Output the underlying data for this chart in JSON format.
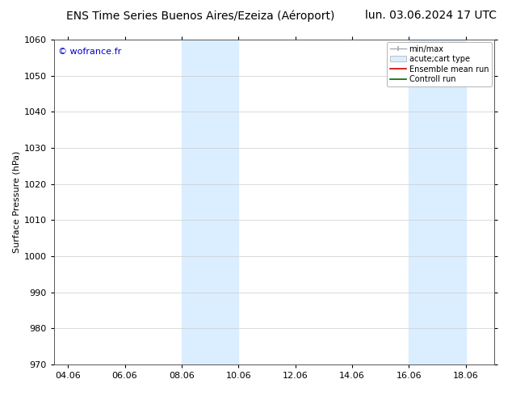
{
  "title_left": "ENS Time Series Buenos Aires/Ezeiza (Aéroport)",
  "title_right": "lun. 03.06.2024 17 UTC",
  "ylabel": "Surface Pressure (hPa)",
  "ylim": [
    970,
    1060
  ],
  "yticks": [
    970,
    980,
    990,
    1000,
    1010,
    1020,
    1030,
    1040,
    1050,
    1060
  ],
  "xtick_labels": [
    "04.06",
    "06.06",
    "08.06",
    "10.06",
    "12.06",
    "14.06",
    "16.06",
    "18.06"
  ],
  "xtick_positions": [
    0,
    2,
    4,
    6,
    8,
    10,
    12,
    14
  ],
  "xlim": [
    -0.5,
    15
  ],
  "shaded_bands": [
    {
      "x_start": 4.0,
      "x_end": 6.0,
      "color": "#daeeff"
    },
    {
      "x_start": 12.0,
      "x_end": 14.0,
      "color": "#daeeff"
    }
  ],
  "watermark_text": "© wofrance.fr",
  "watermark_color": "#0000cc",
  "legend_items": [
    {
      "label": "min/max",
      "color": "#aaaaaa",
      "type": "minmax"
    },
    {
      "label": "acute;cart type",
      "color": "#cccccc",
      "type": "patch"
    },
    {
      "label": "Ensemble mean run",
      "color": "#cc0000",
      "type": "line"
    },
    {
      "label": "Controll run",
      "color": "#006600",
      "type": "line"
    }
  ],
  "bg_color": "#ffffff",
  "plot_bg_color": "#ffffff",
  "grid_color": "#cccccc",
  "title_fontsize": 10,
  "axis_label_fontsize": 8,
  "tick_fontsize": 8,
  "legend_fontsize": 7
}
